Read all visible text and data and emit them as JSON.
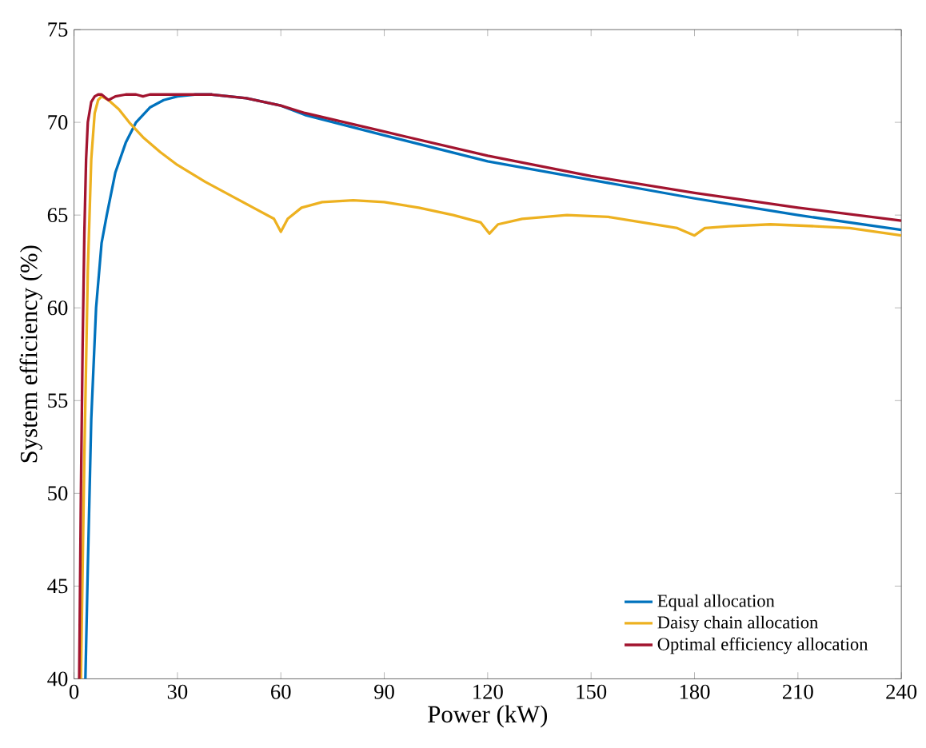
{
  "chart_data": {
    "type": "line",
    "xlabel": "Power (kW)",
    "ylabel": "System efficiency (%)",
    "xlim": [
      0,
      240
    ],
    "ylim": [
      40,
      75
    ],
    "xticks": [
      0,
      30,
      60,
      90,
      120,
      150,
      180,
      210,
      240
    ],
    "yticks": [
      40,
      45,
      50,
      55,
      60,
      65,
      70,
      75
    ],
    "legend": "bottom right",
    "grid": false,
    "series": [
      {
        "name": "Equal allocation",
        "color": "#0072bd",
        "x": [
          3.3,
          4,
          5,
          6.4,
          8,
          9.5,
          12,
          15,
          18,
          22,
          26,
          30,
          35,
          40,
          50,
          60,
          67,
          90,
          120,
          150,
          180,
          210,
          240
        ],
        "values": [
          40,
          46,
          54,
          60,
          63.5,
          65,
          67.3,
          68.9,
          70,
          70.8,
          71.2,
          71.4,
          71.5,
          71.5,
          71.3,
          70.9,
          70.4,
          69.3,
          67.9,
          66.9,
          65.9,
          65.0,
          64.2
        ]
      },
      {
        "name": "Daisy chain allocation",
        "color": "#edb120",
        "x": [
          2,
          3,
          4,
          5,
          6,
          7,
          8,
          10,
          13,
          16,
          20,
          25,
          30,
          38,
          45,
          52,
          58,
          60,
          62,
          66,
          72,
          81,
          90,
          100,
          110,
          118,
          120.5,
          123,
          130,
          143,
          155,
          165,
          175,
          180,
          183,
          190,
          202,
          215,
          225,
          240
        ],
        "values": [
          40,
          52,
          62,
          68,
          70.5,
          71.2,
          71.4,
          71.2,
          70.7,
          70,
          69.2,
          68.4,
          67.7,
          66.8,
          66.1,
          65.4,
          64.8,
          64.1,
          64.8,
          65.4,
          65.7,
          65.8,
          65.7,
          65.4,
          65,
          64.6,
          64.0,
          64.5,
          64.8,
          65.0,
          64.9,
          64.6,
          64.3,
          63.9,
          64.3,
          64.4,
          64.5,
          64.4,
          64.3,
          63.9
        ]
      },
      {
        "name": "Optimal efficiency allocation",
        "color": "#a2142f",
        "x": [
          1.5,
          2,
          2.5,
          3,
          3.5,
          4,
          5,
          6,
          7,
          8,
          10,
          12,
          15,
          18,
          20,
          22,
          25,
          30,
          35,
          40,
          50,
          60,
          67,
          90,
          120,
          150,
          180,
          210,
          240
        ],
        "values": [
          40,
          50,
          58,
          64,
          68,
          70,
          71.1,
          71.4,
          71.5,
          71.5,
          71.2,
          71.4,
          71.5,
          71.5,
          71.4,
          71.5,
          71.5,
          71.5,
          71.5,
          71.5,
          71.3,
          70.9,
          70.5,
          69.5,
          68.2,
          67.1,
          66.2,
          65.4,
          64.7
        ]
      }
    ]
  }
}
